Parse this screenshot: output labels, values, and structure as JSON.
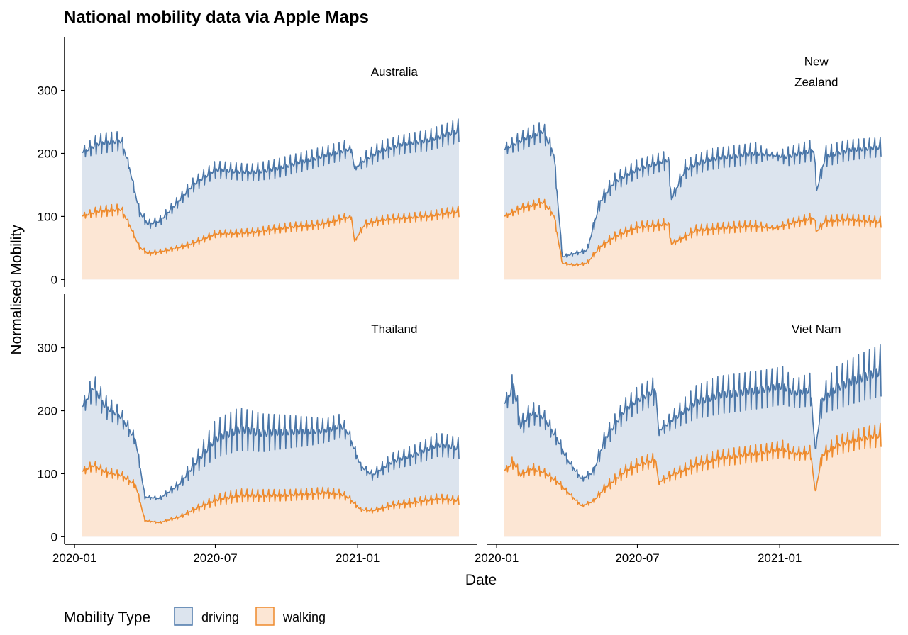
{
  "colors": {
    "driving_line": "#4A76A8",
    "driving_fill": "#DCE4EE",
    "walking_line": "#EE8A2C",
    "walking_fill": "#FCE6D4"
  },
  "chart_data": {
    "type": "area",
    "title": "National mobility data via Apple Maps",
    "xlabel": "Date",
    "ylabel": "Normalised Mobility",
    "x_ticks": [
      "2020-01",
      "2020-07",
      "2021-01"
    ],
    "x_range": [
      "2020-01-11",
      "2021-05-12"
    ],
    "y_ticks": [
      0,
      100,
      200,
      300
    ],
    "ylim": [
      -12,
      385
    ],
    "grid": false,
    "legend": {
      "title": "Mobility Type",
      "position": "bottom-left",
      "entries": [
        "driving",
        "walking"
      ]
    },
    "panels": [
      {
        "country": "Australia",
        "series": [
          {
            "name": "driving",
            "dates": [
              "2020-01-13",
              "2020-02-01",
              "2020-03-01",
              "2020-03-10",
              "2020-03-25",
              "2020-04-05",
              "2020-04-20",
              "2020-05-10",
              "2020-06-01",
              "2020-07-01",
              "2020-07-20",
              "2020-08-15",
              "2020-09-15",
              "2020-10-15",
              "2020-11-15",
              "2020-12-15",
              "2020-12-24",
              "2020-12-28",
              "2021-01-10",
              "2021-02-01",
              "2021-03-01",
              "2021-04-01",
              "2021-05-12"
            ],
            "values": [
              200,
              210,
              215,
              185,
              105,
              85,
              90,
              115,
              145,
              170,
              168,
              165,
              170,
              180,
              190,
              200,
              205,
              175,
              185,
              200,
              210,
              215,
              230
            ],
            "amplitude": [
              12,
              22,
              20,
              8,
              10,
              10,
              10,
              12,
              15,
              18,
              18,
              18,
              20,
              20,
              20,
              20,
              5,
              3,
              18,
              20,
              20,
              22,
              25
            ]
          },
          {
            "name": "walking",
            "dates": [
              "2020-01-13",
              "2020-02-01",
              "2020-03-01",
              "2020-03-10",
              "2020-03-25",
              "2020-04-05",
              "2020-05-01",
              "2020-06-01",
              "2020-07-01",
              "2020-08-15",
              "2020-10-01",
              "2020-11-15",
              "2020-12-15",
              "2020-12-24",
              "2020-12-28",
              "2021-01-10",
              "2021-02-01",
              "2021-03-01",
              "2021-04-01",
              "2021-05-12"
            ],
            "values": [
              100,
              105,
              108,
              90,
              50,
              40,
              45,
              55,
              70,
              72,
              80,
              85,
              95,
              98,
              60,
              85,
              92,
              95,
              98,
              105
            ],
            "amplitude": [
              6,
              12,
              12,
              6,
              5,
              5,
              5,
              7,
              8,
              9,
              10,
              10,
              10,
              3,
              2,
              9,
              10,
              10,
              10,
              12
            ]
          }
        ]
      },
      {
        "country": "New Zealand",
        "series": [
          {
            "name": "driving",
            "dates": [
              "2020-01-13",
              "2020-02-01",
              "2020-03-01",
              "2020-03-15",
              "2020-03-26",
              "2020-04-10",
              "2020-04-27",
              "2020-05-14",
              "2020-06-01",
              "2020-07-01",
              "2020-08-10",
              "2020-08-14",
              "2020-09-01",
              "2020-10-01",
              "2020-11-01",
              "2020-12-01",
              "2020-12-25",
              "2021-01-10",
              "2021-02-14",
              "2021-02-18",
              "2021-03-01",
              "2021-04-01",
              "2021-05-12"
            ],
            "values": [
              205,
              215,
              230,
              195,
              35,
              40,
              45,
              120,
              150,
              170,
              185,
              125,
              170,
              185,
              190,
              195,
              195,
              190,
              200,
              140,
              190,
              200,
              205
            ],
            "amplitude": [
              12,
              20,
              22,
              15,
              4,
              4,
              6,
              15,
              18,
              20,
              20,
              8,
              20,
              22,
              22,
              22,
              5,
              20,
              22,
              5,
              22,
              22,
              20
            ]
          },
          {
            "name": "walking",
            "dates": [
              "2020-01-13",
              "2020-02-01",
              "2020-03-01",
              "2020-03-15",
              "2020-03-26",
              "2020-04-10",
              "2020-04-27",
              "2020-05-14",
              "2020-06-01",
              "2020-07-01",
              "2020-08-10",
              "2020-08-14",
              "2020-09-15",
              "2020-11-01",
              "2020-12-01",
              "2020-12-25",
              "2021-01-10",
              "2021-02-14",
              "2021-02-18",
              "2021-03-01",
              "2021-04-01",
              "2021-05-12"
            ],
            "values": [
              100,
              110,
              120,
              100,
              25,
              22,
              25,
              50,
              65,
              80,
              85,
              55,
              75,
              80,
              82,
              80,
              85,
              95,
              75,
              90,
              92,
              88
            ],
            "amplitude": [
              5,
              10,
              10,
              8,
              3,
              3,
              4,
              8,
              10,
              12,
              12,
              5,
              12,
              12,
              12,
              4,
              10,
              12,
              5,
              12,
              12,
              12
            ]
          }
        ]
      },
      {
        "country": "Thailand",
        "series": [
          {
            "name": "driving",
            "dates": [
              "2020-01-13",
              "2020-01-25",
              "2020-02-10",
              "2020-03-01",
              "2020-03-20",
              "2020-04-01",
              "2020-04-20",
              "2020-05-15",
              "2020-06-01",
              "2020-07-01",
              "2020-08-01",
              "2020-09-01",
              "2020-10-01",
              "2020-11-01",
              "2020-11-20",
              "2020-12-10",
              "2020-12-20",
              "2021-01-05",
              "2021-01-20",
              "2021-02-15",
              "2021-03-15",
              "2021-04-15",
              "2021-05-12"
            ],
            "values": [
              205,
              230,
              200,
              185,
              150,
              62,
              60,
              80,
              105,
              145,
              160,
              155,
              158,
              160,
              162,
              170,
              160,
              110,
              95,
              115,
              125,
              140,
              135
            ],
            "amplitude": [
              15,
              30,
              25,
              20,
              12,
              4,
              4,
              10,
              18,
              40,
              45,
              40,
              35,
              30,
              25,
              25,
              15,
              8,
              10,
              18,
              20,
              25,
              22
            ]
          },
          {
            "name": "walking",
            "dates": [
              "2020-01-13",
              "2020-01-25",
              "2020-02-10",
              "2020-03-01",
              "2020-03-20",
              "2020-04-01",
              "2020-04-20",
              "2020-05-15",
              "2020-06-01",
              "2020-07-01",
              "2020-08-01",
              "2020-09-01",
              "2020-10-01",
              "2020-11-01",
              "2020-11-20",
              "2020-12-10",
              "2020-12-20",
              "2021-01-05",
              "2021-01-20",
              "2021-02-15",
              "2021-03-15",
              "2021-04-15",
              "2021-05-12"
            ],
            "values": [
              103,
              110,
              100,
              95,
              80,
              25,
              22,
              30,
              40,
              55,
              62,
              62,
              63,
              65,
              67,
              65,
              60,
              42,
              40,
              48,
              52,
              58,
              55
            ],
            "amplitude": [
              8,
              12,
              10,
              10,
              8,
              2,
              2,
              4,
              6,
              12,
              14,
              13,
              12,
              12,
              12,
              10,
              8,
              4,
              5,
              8,
              10,
              10,
              10
            ]
          }
        ]
      },
      {
        "country": "Viet Nam",
        "series": [
          {
            "name": "driving",
            "dates": [
              "2020-01-13",
              "2020-01-23",
              "2020-02-01",
              "2020-02-15",
              "2020-03-01",
              "2020-03-20",
              "2020-04-01",
              "2020-04-20",
              "2020-05-05",
              "2020-05-20",
              "2020-06-15",
              "2020-07-01",
              "2020-07-25",
              "2020-07-28",
              "2020-08-15",
              "2020-09-15",
              "2020-10-15",
              "2020-11-15",
              "2020-12-15",
              "2021-01-05",
              "2021-01-20",
              "2021-02-10",
              "2021-02-16",
              "2021-02-25",
              "2021-03-15",
              "2021-04-15",
              "2021-05-12"
            ],
            "values": [
              210,
              230,
              170,
              190,
              185,
              150,
              120,
              90,
              100,
              150,
              195,
              210,
              225,
              165,
              180,
              205,
              215,
              220,
              225,
              230,
              220,
              225,
              135,
              210,
              225,
              240,
              250
            ],
            "amplitude": [
              15,
              35,
              20,
              25,
              20,
              15,
              10,
              6,
              10,
              20,
              25,
              28,
              30,
              10,
              20,
              35,
              40,
              40,
              40,
              40,
              30,
              35,
              5,
              30,
              45,
              50,
              55
            ]
          },
          {
            "name": "walking",
            "dates": [
              "2020-01-13",
              "2020-01-23",
              "2020-02-01",
              "2020-02-15",
              "2020-03-01",
              "2020-03-20",
              "2020-04-01",
              "2020-04-20",
              "2020-05-05",
              "2020-05-20",
              "2020-06-15",
              "2020-07-01",
              "2020-07-25",
              "2020-07-28",
              "2020-08-15",
              "2020-09-15",
              "2020-10-15",
              "2020-11-15",
              "2020-12-15",
              "2021-01-05",
              "2021-01-20",
              "2021-02-10",
              "2021-02-16",
              "2021-02-25",
              "2021-03-15",
              "2021-04-15",
              "2021-05-12"
            ],
            "values": [
              105,
              115,
              95,
              105,
              100,
              85,
              70,
              48,
              55,
              75,
              100,
              110,
              118,
              85,
              95,
              110,
              120,
              125,
              130,
              135,
              128,
              130,
              70,
              125,
              140,
              150,
              155
            ],
            "amplitude": [
              6,
              15,
              8,
              12,
              10,
              8,
              6,
              3,
              5,
              10,
              14,
              15,
              16,
              6,
              12,
              16,
              18,
              18,
              18,
              18,
              14,
              15,
              3,
              15,
              20,
              22,
              25
            ]
          }
        ]
      }
    ]
  }
}
